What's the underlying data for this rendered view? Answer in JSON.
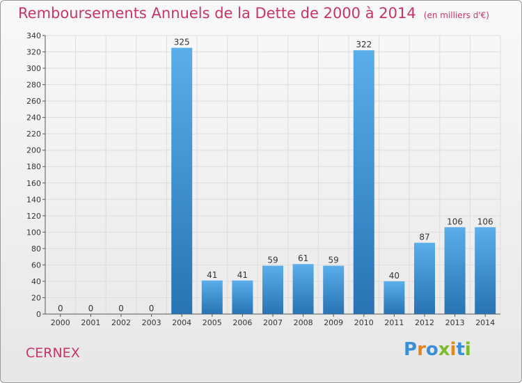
{
  "chart_data": {
    "type": "bar",
    "title": "Remboursements Annuels de la Dette de 2000 à 2014",
    "subtitle": "(en milliers d'€)",
    "categories": [
      "2000",
      "2001",
      "2002",
      "2003",
      "2004",
      "2005",
      "2006",
      "2007",
      "2008",
      "2009",
      "2010",
      "2011",
      "2012",
      "2013",
      "2014"
    ],
    "values": [
      0,
      0,
      0,
      0,
      325,
      41,
      41,
      59,
      61,
      59,
      322,
      40,
      87,
      106,
      106
    ],
    "ylim": [
      0,
      340
    ],
    "yticks": [
      0,
      20,
      40,
      60,
      80,
      100,
      120,
      140,
      160,
      180,
      200,
      220,
      240,
      260,
      280,
      300,
      320,
      340
    ],
    "grid": true,
    "legend": "none",
    "colors": {
      "bar_light": "#5aaeea",
      "bar_dark": "#2873b3",
      "title": "#c8346a",
      "grid": "#dddddd"
    }
  },
  "footer": {
    "commune": "CERNEX",
    "logo_letters": [
      {
        "char": "P",
        "color": "#3a8fd6"
      },
      {
        "char": "r",
        "color": "#e8841c"
      },
      {
        "char": "o",
        "color": "#3a8fd6"
      },
      {
        "char": "x",
        "color": "#7cbb2a"
      },
      {
        "char": "i",
        "color": "#e8841c"
      },
      {
        "char": "t",
        "color": "#3a8fd6"
      },
      {
        "char": "i",
        "color": "#7cbb2a"
      }
    ]
  }
}
